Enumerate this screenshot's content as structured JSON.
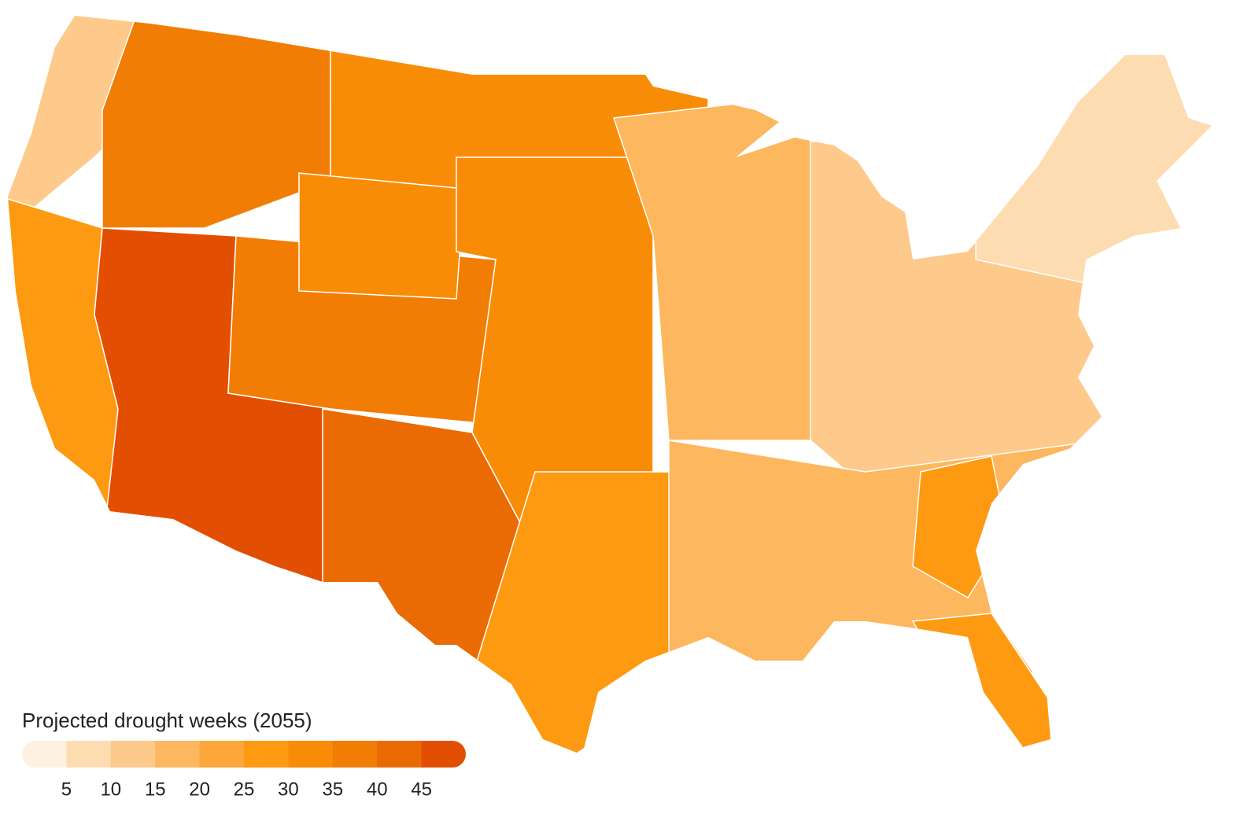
{
  "legend": {
    "title": "Projected drought weeks (2055)",
    "ticks": [
      5,
      10,
      15,
      20,
      25,
      30,
      35,
      40,
      45
    ],
    "colors": [
      "#fff1e2",
      "#fedcb1",
      "#fdca8b",
      "#fdb75f",
      "#fda73b",
      "#fd9a12",
      "#f98c06",
      "#f17d05",
      "#ea6b04",
      "#e24f02"
    ]
  },
  "regions": [
    {
      "value": 12
    },
    {
      "value": 36
    },
    {
      "value": 30
    },
    {
      "value": 26
    },
    {
      "value": 46
    },
    {
      "value": 38
    },
    {
      "value": 33
    },
    {
      "value": 40
    },
    {
      "value": 30
    },
    {
      "value": 27
    },
    {
      "value": 17
    },
    {
      "value": 13
    },
    {
      "value": 7
    },
    {
      "value": 19
    },
    {
      "value": 27
    },
    {
      "value": 26
    }
  ]
}
